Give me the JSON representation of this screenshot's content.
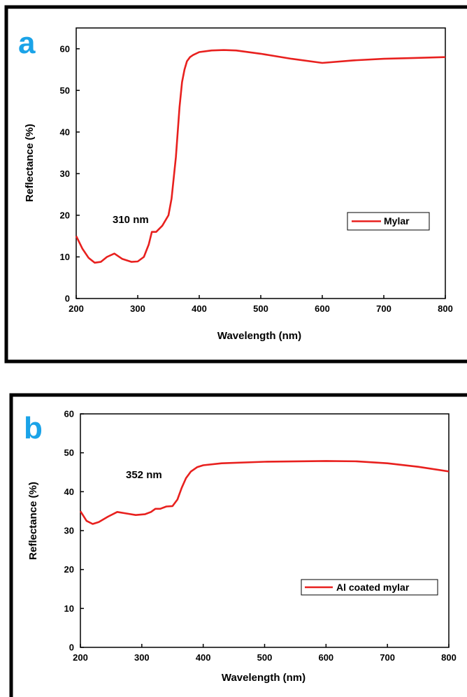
{
  "chart_data": [
    {
      "type": "line",
      "panel_label": "a",
      "xlabel": "Wavelength (nm)",
      "ylabel": "Reflectance (%)",
      "xlim": [
        200,
        800
      ],
      "ylim": [
        0,
        65
      ],
      "xticks": [
        200,
        300,
        400,
        500,
        600,
        700,
        800
      ],
      "yticks": [
        0,
        10,
        20,
        30,
        40,
        50,
        60
      ],
      "annotation": "310 nm",
      "legend_position": "center-right",
      "grid": false,
      "color": "#e8201e",
      "series": [
        {
          "name": "Mylar",
          "x": [
            200,
            210,
            220,
            230,
            240,
            250,
            262,
            275,
            290,
            300,
            310,
            318,
            323,
            330,
            340,
            350,
            355,
            362,
            368,
            372,
            376,
            380,
            385,
            390,
            400,
            420,
            440,
            460,
            500,
            550,
            600,
            650,
            700,
            750,
            800
          ],
          "y": [
            15,
            12,
            9.8,
            8.6,
            8.8,
            10,
            10.8,
            9.5,
            8.8,
            8.9,
            10,
            13,
            16,
            16,
            17.5,
            20,
            24,
            34,
            46,
            52,
            55,
            57,
            58,
            58.5,
            59.2,
            59.6,
            59.7,
            59.6,
            58.8,
            57.6,
            56.6,
            57.2,
            57.6,
            57.8,
            58
          ]
        }
      ]
    },
    {
      "type": "line",
      "panel_label": "b",
      "xlabel": "Wavelength (nm)",
      "ylabel": "Reflectance (%)",
      "xlim": [
        200,
        800
      ],
      "ylim": [
        0,
        60
      ],
      "xticks": [
        200,
        300,
        400,
        500,
        600,
        700,
        800
      ],
      "yticks": [
        0,
        10,
        20,
        30,
        40,
        50,
        60
      ],
      "annotation": "352 nm",
      "legend_position": "lower-right",
      "grid": false,
      "color": "#e8201e",
      "series": [
        {
          "name": "Al coated mylar",
          "x": [
            200,
            210,
            220,
            230,
            245,
            260,
            275,
            290,
            305,
            315,
            322,
            330,
            340,
            350,
            358,
            365,
            372,
            380,
            390,
            400,
            430,
            500,
            600,
            650,
            700,
            750,
            800
          ],
          "y": [
            35,
            32.5,
            31.7,
            32.2,
            33.6,
            34.8,
            34.4,
            34.0,
            34.2,
            34.8,
            35.6,
            35.6,
            36.2,
            36.3,
            38,
            41,
            43.5,
            45.2,
            46.3,
            46.8,
            47.3,
            47.7,
            47.9,
            47.8,
            47.3,
            46.4,
            45.2
          ]
        }
      ]
    }
  ]
}
